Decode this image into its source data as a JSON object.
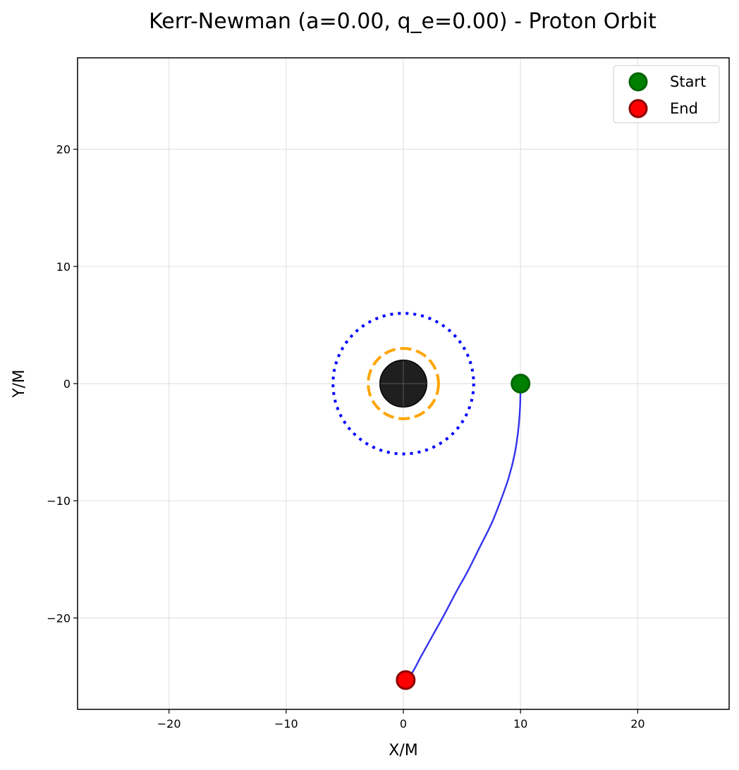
{
  "chart_data": {
    "type": "line",
    "title": "Kerr-Newman (a=0.00, q_e=0.00) - Proton Orbit",
    "xlabel": "X/M",
    "ylabel": "Y/M",
    "xlim": [
      -27.8,
      27.8
    ],
    "ylim": [
      -27.8,
      27.8
    ],
    "xticks": [
      -20,
      -10,
      0,
      10,
      20
    ],
    "yticks": [
      -20,
      -10,
      0,
      10,
      20
    ],
    "xtick_labels": [
      "−20",
      "−10",
      "0",
      "10",
      "20"
    ],
    "ytick_labels": [
      "−20",
      "−10",
      "0",
      "10",
      "20"
    ],
    "grid": true,
    "legend_placement": "top-right",
    "black_hole": {
      "center": [
        0,
        0
      ],
      "radius": 2.0,
      "color": "#1f1f1f"
    },
    "photon_sphere": {
      "radius": 3.0,
      "color": "#ffa500",
      "style": "dashed"
    },
    "isco": {
      "radius": 6.0,
      "color": "#0000ff",
      "style": "dotted"
    },
    "series": [
      {
        "color": "#3333ee",
        "x": [
          10.0,
          9.96,
          9.8,
          9.5,
          9.0,
          8.3,
          7.5,
          6.5,
          5.5,
          4.5,
          3.5,
          2.5,
          1.5,
          0.8,
          0.2
        ],
        "y": [
          0.0,
          -2.0,
          -4.0,
          -6.0,
          -8.0,
          -10.0,
          -12.0,
          -14.0,
          -16.0,
          -17.8,
          -19.7,
          -21.5,
          -23.3,
          -24.6,
          -25.3
        ]
      }
    ],
    "markers": [
      {
        "name": "Start",
        "x": 10.0,
        "y": 0.0,
        "fill": "#008000",
        "edge": "#006400"
      },
      {
        "name": "End",
        "x": 0.2,
        "y": -25.3,
        "fill": "#ff0000",
        "edge": "#8b0000"
      }
    ]
  }
}
